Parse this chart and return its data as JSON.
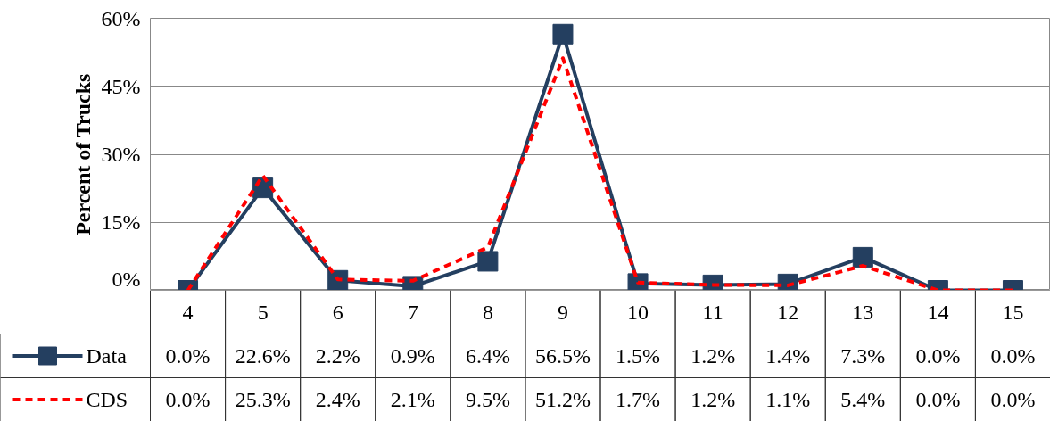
{
  "chart_data": {
    "type": "line",
    "ylabel": "Percent of Trucks",
    "categories": [
      "4",
      "5",
      "6",
      "7",
      "8",
      "9",
      "10",
      "11",
      "12",
      "13",
      "14",
      "15"
    ],
    "ylim": [
      0,
      60
    ],
    "yticks": [
      {
        "value": 0,
        "label": "0%"
      },
      {
        "value": 15,
        "label": "15%"
      },
      {
        "value": 30,
        "label": "30%"
      },
      {
        "value": 45,
        "label": "45%"
      },
      {
        "value": 60,
        "label": "60%"
      }
    ],
    "grid": "y",
    "legend": "bottom left",
    "tick_labels": "y",
    "series": [
      {
        "name": "Data",
        "color": "#243f60",
        "marker": "square",
        "line_style": "solid",
        "values": [
          0.0,
          22.6,
          2.2,
          0.9,
          6.4,
          56.5,
          1.5,
          1.2,
          1.4,
          7.3,
          0.0,
          0.0
        ],
        "value_labels": [
          "0.0%",
          "22.6%",
          "2.2%",
          "0.9%",
          "6.4%",
          "56.5%",
          "1.5%",
          "1.2%",
          "1.4%",
          "7.3%",
          "0.0%",
          "0.0%"
        ]
      },
      {
        "name": "CDS",
        "color": "#ff0000",
        "marker": "none",
        "line_style": "dashed",
        "values": [
          0.0,
          25.3,
          2.4,
          2.1,
          9.5,
          51.2,
          1.7,
          1.2,
          1.1,
          5.4,
          0.0,
          0.0
        ],
        "value_labels": [
          "0.0%",
          "25.3%",
          "2.4%",
          "2.1%",
          "9.5%",
          "51.2%",
          "1.7%",
          "1.2%",
          "1.1%",
          "5.4%",
          "0.0%",
          "0.0%"
        ]
      }
    ]
  }
}
